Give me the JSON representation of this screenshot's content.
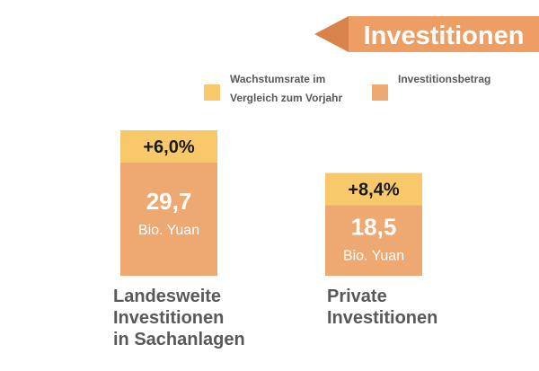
{
  "banner": {
    "title": "Investitionen"
  },
  "colors": {
    "banner": "#ee9e63",
    "banner_arrow": "#d9834a",
    "growth": "#f8c96a",
    "amount": "#eea871"
  },
  "chart_data": {
    "type": "bar",
    "categories": [
      [
        "Landesweite",
        "Investitionen",
        "in Sachanlagen"
      ],
      [
        "Private",
        "Investitionen"
      ]
    ],
    "series": [
      {
        "name": "Investitionsbetrag",
        "values": [
          29.7,
          18.5
        ],
        "labels": [
          "29,7",
          "18,5"
        ],
        "unit": "Bio. Yuan"
      },
      {
        "name": "Wachstumsrate im Vergleich zum Vorjahr",
        "values": [
          6.0,
          8.4
        ],
        "labels": [
          "+6,0%",
          "+8,4%"
        ]
      }
    ],
    "legend": [
      {
        "lines": [
          "Wachstumsrate im",
          "Vergleich zum Vorjahr"
        ],
        "color_key": "growth"
      },
      {
        "lines": [
          "Investitionsbetrag"
        ],
        "color_key": "amount"
      }
    ],
    "legend_position": "top-right",
    "grid": false
  }
}
